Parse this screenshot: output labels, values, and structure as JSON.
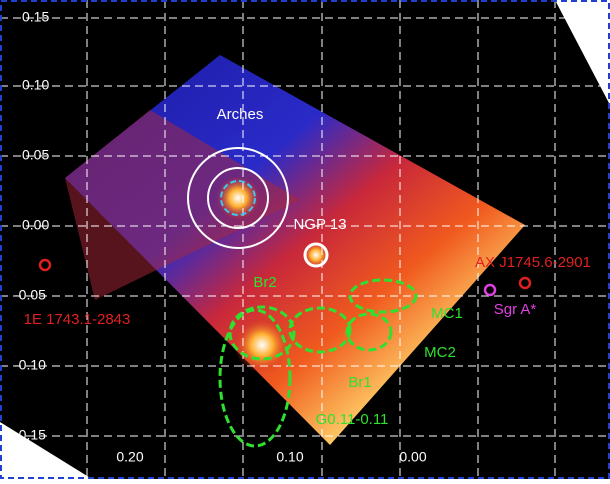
{
  "x_axis": {
    "ticks": [
      "0.20",
      "0.10",
      "0.00"
    ]
  },
  "y_axis": {
    "ticks": [
      "0.15",
      "0.10",
      "0.05",
      "0.00",
      "-0.05",
      "-0.10",
      "-0.15"
    ]
  },
  "labels": {
    "arches": "Arches",
    "ngp13": "NGP 13",
    "br2": "Br2",
    "ax": "AX J1745.6-2901",
    "e1743": "1E 1743.1-2843",
    "sgra": "Sgr A*",
    "mc1": "MC1",
    "mc2": "MC2",
    "br1": "Br1",
    "g011": "G0.11-0.11"
  }
}
